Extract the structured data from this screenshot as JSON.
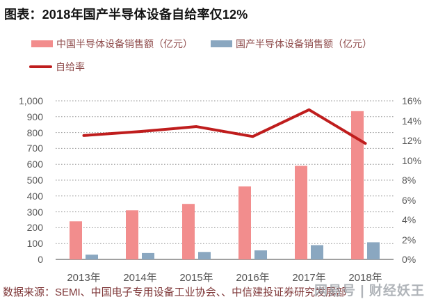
{
  "title": "图表：2018年国产半导体设备自给率仅12%",
  "legend": [
    {
      "label": "中国半导体设备销售额（亿元）",
      "type": "bar",
      "color": "#f28d8d"
    },
    {
      "label": "国产半导体设备销售额（亿元）",
      "type": "bar",
      "color": "#8aa7c0"
    },
    {
      "label": "自给率",
      "type": "line",
      "color": "#bf1d1d"
    }
  ],
  "chart_data": {
    "type": "bar+line combo",
    "categories": [
      "2013年",
      "2014年",
      "2015年",
      "2016年",
      "2017年",
      "2018年"
    ],
    "series": [
      {
        "name": "中国半导体设备销售额（亿元）",
        "type": "bar",
        "axis": "left",
        "color": "#f28d8d",
        "values": [
          240,
          310,
          350,
          460,
          590,
          935
        ]
      },
      {
        "name": "国产半导体设备销售额（亿元）",
        "type": "bar",
        "axis": "left",
        "color": "#8aa7c0",
        "values": [
          30,
          40,
          47,
          57,
          90,
          108
        ]
      },
      {
        "name": "自给率",
        "type": "line",
        "axis": "right",
        "color": "#bf1d1d",
        "values": [
          12.5,
          12.9,
          13.4,
          12.4,
          15.1,
          11.7
        ]
      }
    ],
    "left_axis": {
      "min": 0,
      "max": 1000,
      "step": 100,
      "tick_labels": [
        "0",
        "100",
        "200",
        "300",
        "400",
        "500",
        "600",
        "700",
        "800",
        "900",
        "1,000"
      ]
    },
    "right_axis": {
      "min": 0,
      "max": 16,
      "step": 2,
      "tick_labels": [
        "0%",
        "2%",
        "4%",
        "6%",
        "8%",
        "10%",
        "12%",
        "14%",
        "16%"
      ]
    },
    "grid": "horizontal dotted lines at every 100 units, solid darker baseline at 0",
    "legend_position": "top-left, two rows"
  },
  "source_note": "数据来源：SEMI、中国电子专用设备工业协会、、中信建投证券研究发展部",
  "watermark": "网易号 | 财经妖王",
  "colors": {
    "bar_china": "#f28d8d",
    "bar_domestic": "#8aa7c0",
    "rate_line": "#bf1d1d",
    "gridline": "#969696",
    "baseline": "#808080",
    "axis_text": "#595959",
    "legend_text": "#8f4c4c",
    "source_text": "#7e3637",
    "watermark_text": "#9aa0a6"
  }
}
